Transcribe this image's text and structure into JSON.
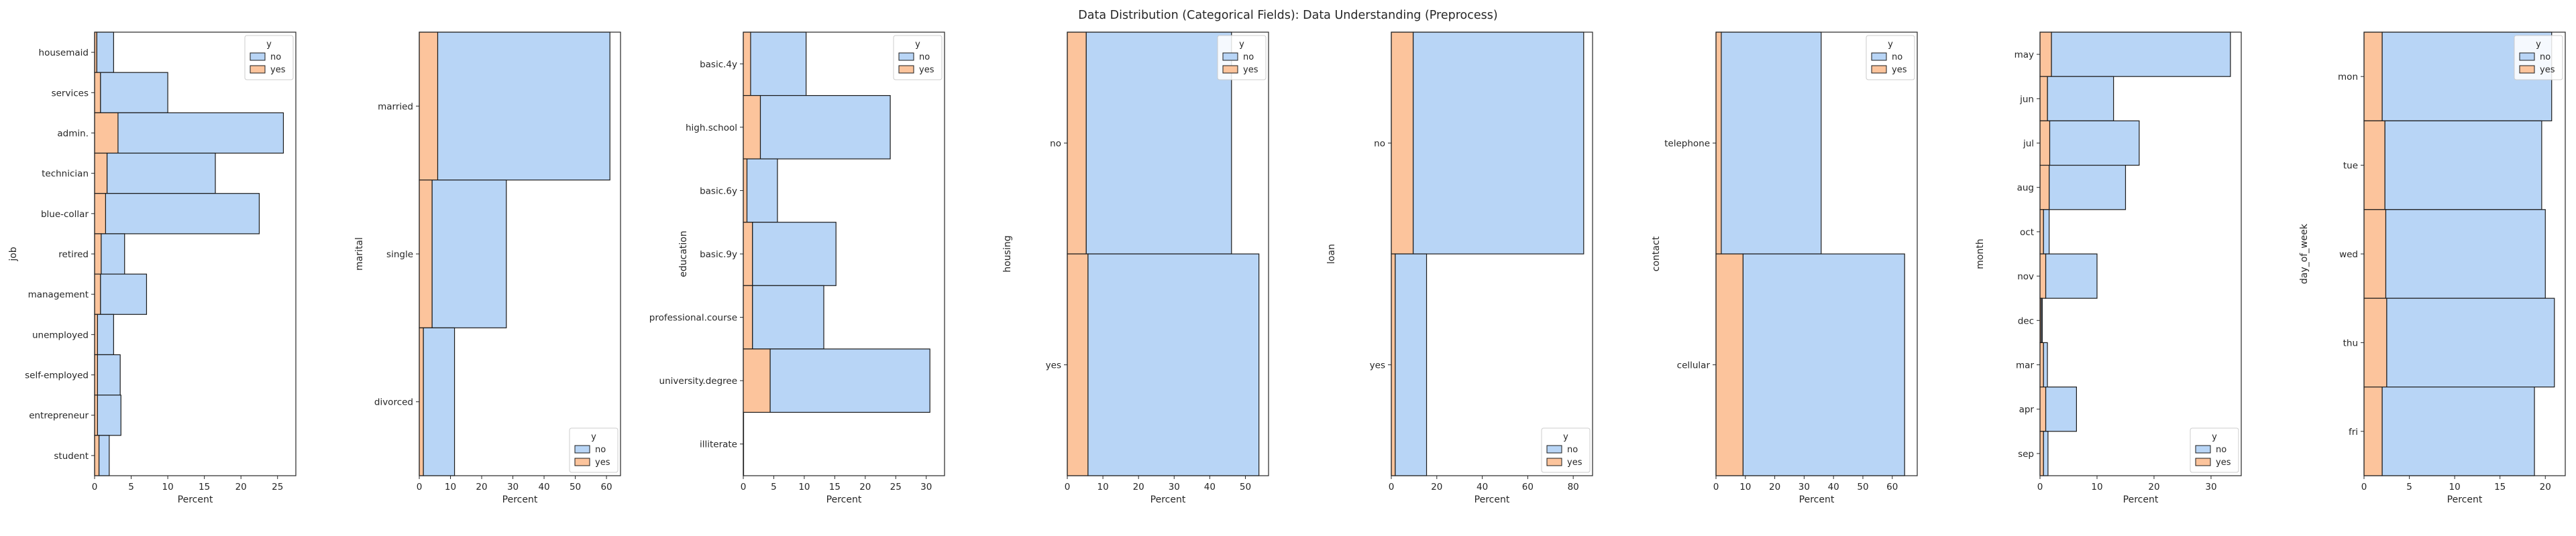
{
  "title": "Data Distribution (Categorical Fields): Data Understanding (Preprocess)",
  "legend": {
    "title": "y",
    "labels": [
      "no",
      "yes"
    ]
  },
  "colors": {
    "no": "#b8d5f6",
    "yes": "#fcc49c",
    "edge": "#1a1a1a"
  },
  "chart_data": [
    {
      "type": "bar",
      "orientation": "horizontal",
      "stacked": true,
      "ylabel": "job",
      "xlabel": "Percent",
      "categories": [
        "housemaid",
        "services",
        "admin.",
        "technician",
        "blue-collar",
        "retired",
        "management",
        "unemployed",
        "self-employed",
        "entrepreneur",
        "student"
      ],
      "series": [
        {
          "name": "no",
          "values": [
            2.3,
            9.2,
            22.6,
            14.8,
            21.0,
            3.2,
            6.3,
            2.2,
            3.1,
            3.2,
            1.4
          ]
        },
        {
          "name": "yes",
          "values": [
            0.3,
            0.8,
            3.2,
            1.7,
            1.5,
            0.9,
            0.8,
            0.4,
            0.4,
            0.4,
            0.6
          ]
        }
      ],
      "xticks": [
        0,
        5,
        10,
        15,
        20,
        25
      ],
      "xlim": [
        0,
        27.5
      ],
      "legend": "top-right"
    },
    {
      "type": "bar",
      "orientation": "horizontal",
      "stacked": true,
      "ylabel": "marital",
      "xlabel": "Percent",
      "categories": [
        "married",
        "single",
        "divorced"
      ],
      "series": [
        {
          "name": "no",
          "values": [
            55.2,
            23.8,
            10.0
          ]
        },
        {
          "name": "yes",
          "values": [
            5.9,
            4.1,
            1.3
          ]
        }
      ],
      "xticks": [
        0,
        10,
        20,
        30,
        40,
        50,
        60
      ],
      "xlim": [
        0,
        64.5
      ],
      "legend": "bottom-right"
    },
    {
      "type": "bar",
      "orientation": "horizontal",
      "stacked": true,
      "ylabel": "education",
      "xlabel": "Percent",
      "categories": [
        "basic.4y",
        "high.school",
        "basic.6y",
        "basic.9y",
        "professional.course",
        "university.degree",
        "illiterate"
      ],
      "series": [
        {
          "name": "no",
          "values": [
            9.1,
            21.3,
            5.0,
            13.7,
            11.7,
            26.2,
            0.05
          ]
        },
        {
          "name": "yes",
          "values": [
            1.2,
            2.8,
            0.6,
            1.5,
            1.5,
            4.4,
            0.0
          ]
        }
      ],
      "xticks": [
        0,
        5,
        10,
        15,
        20,
        25,
        30
      ],
      "xlim": [
        0,
        33
      ],
      "legend": "top-right"
    },
    {
      "type": "bar",
      "orientation": "horizontal",
      "stacked": true,
      "ylabel": "housing",
      "xlabel": "Percent",
      "categories": [
        "no",
        "yes"
      ],
      "series": [
        {
          "name": "no",
          "values": [
            40.8,
            48.0
          ]
        },
        {
          "name": "yes",
          "values": [
            5.3,
            5.8
          ]
        }
      ],
      "xticks": [
        0,
        10,
        20,
        30,
        40,
        50
      ],
      "xlim": [
        0,
        56.5
      ],
      "legend": "top-right"
    },
    {
      "type": "bar",
      "orientation": "horizontal",
      "stacked": true,
      "ylabel": "loan",
      "xlabel": "Percent",
      "categories": [
        "no",
        "yes"
      ],
      "series": [
        {
          "name": "no",
          "values": [
            75.0,
            13.8
          ]
        },
        {
          "name": "yes",
          "values": [
            9.6,
            1.7
          ]
        }
      ],
      "xticks": [
        0,
        20,
        40,
        60,
        80
      ],
      "xlim": [
        0,
        88.5
      ],
      "legend": "bottom-right"
    },
    {
      "type": "bar",
      "orientation": "horizontal",
      "stacked": true,
      "ylabel": "contact",
      "xlabel": "Percent",
      "categories": [
        "telephone",
        "cellular"
      ],
      "series": [
        {
          "name": "no",
          "values": [
            34.0,
            55.0
          ]
        },
        {
          "name": "yes",
          "values": [
            1.8,
            9.2
          ]
        }
      ],
      "xticks": [
        0,
        10,
        20,
        30,
        40,
        50,
        60
      ],
      "xlim": [
        0,
        68.5
      ],
      "legend": "top-right"
    },
    {
      "type": "bar",
      "orientation": "horizontal",
      "stacked": true,
      "ylabel": "month",
      "xlabel": "Percent",
      "categories": [
        "may",
        "jun",
        "jul",
        "aug",
        "oct",
        "nov",
        "dec",
        "mar",
        "apr",
        "sep"
      ],
      "series": [
        {
          "name": "no",
          "values": [
            31.4,
            11.6,
            15.7,
            13.4,
            1.0,
            9.0,
            0.2,
            0.7,
            5.4,
            0.8
          ]
        },
        {
          "name": "yes",
          "values": [
            2.0,
            1.3,
            1.7,
            1.6,
            0.6,
            1.0,
            0.2,
            0.6,
            1.0,
            0.6
          ]
        }
      ],
      "xticks": [
        0,
        10,
        20,
        30
      ],
      "xlim": [
        0,
        35.3
      ],
      "legend": "bottom-right"
    },
    {
      "type": "bar",
      "orientation": "horizontal",
      "stacked": true,
      "ylabel": "day_of_week",
      "xlabel": "Percent",
      "categories": [
        "mon",
        "tue",
        "wed",
        "thu",
        "fri"
      ],
      "series": [
        {
          "name": "no",
          "values": [
            18.7,
            17.3,
            17.6,
            18.5,
            16.8
          ]
        },
        {
          "name": "yes",
          "values": [
            2.0,
            2.3,
            2.4,
            2.5,
            2.0
          ]
        }
      ],
      "xticks": [
        0,
        5,
        10,
        15,
        20
      ],
      "xlim": [
        0,
        22.2
      ],
      "legend": "top-right"
    }
  ]
}
